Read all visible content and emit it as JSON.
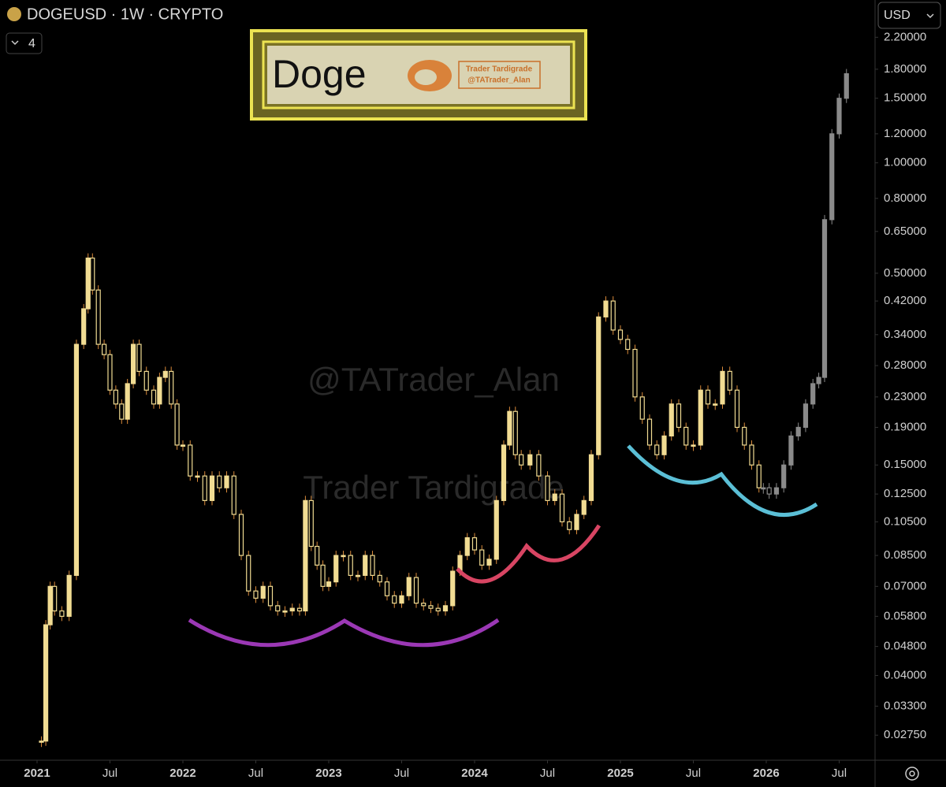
{
  "header": {
    "symbol": "DOGEUSD · 1W · CRYPTO",
    "indicator_count": "4",
    "currency": "USD"
  },
  "logo": {
    "title": "Doge",
    "author": "Trader Tardigrade",
    "handle": "@TATrader_Alan"
  },
  "watermark": {
    "handle": "@TATrader_Alan",
    "author": "Trader Tardigrade"
  },
  "chart_data": {
    "type": "candlestick",
    "log": true,
    "grid": false,
    "xlim": [
      2020.746,
      2026.746
    ],
    "ylim": [
      0.0235,
      2.78
    ],
    "xticks": [
      2021,
      {
        "value": 2021.5,
        "label": "Jul"
      },
      2022,
      {
        "value": 2022.5,
        "label": "Jul"
      },
      2023,
      {
        "value": 2023.5,
        "label": "Jul"
      },
      2024,
      {
        "value": 2024.5,
        "label": "Jul"
      },
      2025,
      {
        "value": 2025.5,
        "label": "Jul"
      },
      2026,
      {
        "value": 2026.5,
        "label": "Jul"
      }
    ],
    "yticks": [
      {
        "value": 2.2,
        "label": "2.20000"
      },
      {
        "value": 1.8,
        "label": "1.80000"
      },
      {
        "value": 1.5,
        "label": "1.50000"
      },
      {
        "value": 1.2,
        "label": "1.20000"
      },
      {
        "value": 1.0,
        "label": "1.00000"
      },
      {
        "value": 0.8,
        "label": "0.80000"
      },
      {
        "value": 0.65,
        "label": "0.65000"
      },
      {
        "value": 0.5,
        "label": "0.50000"
      },
      {
        "value": 0.42,
        "label": "0.42000"
      },
      {
        "value": 0.34,
        "label": "0.34000"
      },
      {
        "value": 0.28,
        "label": "0.28000"
      },
      {
        "value": 0.23,
        "label": "0.23000"
      },
      {
        "value": 0.19,
        "label": "0.19000"
      },
      {
        "value": 0.15,
        "label": "0.15000"
      },
      {
        "value": 0.125,
        "label": "0.12500"
      },
      {
        "value": 0.105,
        "label": "0.10500"
      },
      {
        "value": 0.085,
        "label": "0.08500"
      },
      {
        "value": 0.07,
        "label": "0.07000"
      },
      {
        "value": 0.058,
        "label": "0.05800"
      },
      {
        "value": 0.048,
        "label": "0.04800"
      },
      {
        "value": 0.04,
        "label": "0.04000"
      },
      {
        "value": 0.033,
        "label": "0.03300"
      },
      {
        "value": 0.0275,
        "label": "0.02750"
      }
    ],
    "series": [
      {
        "color": "#f1dc93",
        "x": [
          2021.03,
          2021.06,
          2021.09,
          2021.12,
          2021.17,
          2021.22,
          2021.27,
          2021.32,
          2021.35,
          2021.38,
          2021.42,
          2021.46,
          2021.5,
          2021.54,
          2021.58,
          2021.62,
          2021.66,
          2021.7,
          2021.75,
          2021.8,
          2021.84,
          2021.88,
          2021.92,
          2021.96,
          2022.0,
          2022.05,
          2022.1,
          2022.15,
          2022.2,
          2022.25,
          2022.3,
          2022.35,
          2022.4,
          2022.45,
          2022.5,
          2022.55,
          2022.6,
          2022.65,
          2022.7,
          2022.75,
          2022.8,
          2022.84,
          2022.88,
          2022.92,
          2022.96,
          2023.0,
          2023.05,
          2023.1,
          2023.15,
          2023.2,
          2023.25,
          2023.3,
          2023.35,
          2023.4,
          2023.45,
          2023.5,
          2023.55,
          2023.6,
          2023.65,
          2023.7,
          2023.75,
          2023.8,
          2023.85,
          2023.9,
          2023.95,
          2024.0,
          2024.05,
          2024.1,
          2024.15,
          2024.2,
          2024.24,
          2024.28,
          2024.32,
          2024.38,
          2024.44,
          2024.5,
          2024.55,
          2024.6,
          2024.65,
          2024.7,
          2024.75,
          2024.8,
          2024.85,
          2024.9,
          2024.95,
          2025.0,
          2025.05,
          2025.1,
          2025.15,
          2025.2,
          2025.25,
          2025.3,
          2025.35,
          2025.4,
          2025.45,
          2025.5,
          2025.55,
          2025.6,
          2025.65,
          2025.7,
          2025.75,
          2025.8,
          2025.85,
          2025.9,
          2025.95
        ],
        "values": [
          0.0265,
          0.055,
          0.07,
          0.06,
          0.058,
          0.075,
          0.32,
          0.4,
          0.55,
          0.45,
          0.32,
          0.3,
          0.24,
          0.22,
          0.2,
          0.25,
          0.32,
          0.27,
          0.24,
          0.22,
          0.26,
          0.27,
          0.22,
          0.17,
          0.17,
          0.14,
          0.14,
          0.12,
          0.14,
          0.13,
          0.14,
          0.11,
          0.085,
          0.068,
          0.065,
          0.07,
          0.062,
          0.06,
          0.06,
          0.061,
          0.06,
          0.12,
          0.09,
          0.08,
          0.07,
          0.072,
          0.085,
          0.085,
          0.075,
          0.075,
          0.085,
          0.075,
          0.072,
          0.066,
          0.063,
          0.066,
          0.074,
          0.063,
          0.062,
          0.061,
          0.06,
          0.062,
          0.077,
          0.085,
          0.095,
          0.088,
          0.08,
          0.083,
          0.12,
          0.17,
          0.21,
          0.16,
          0.15,
          0.16,
          0.14,
          0.12,
          0.125,
          0.105,
          0.1,
          0.11,
          0.12,
          0.16,
          0.38,
          0.42,
          0.35,
          0.33,
          0.31,
          0.23,
          0.2,
          0.17,
          0.16,
          0.18,
          0.22,
          0.19,
          0.17,
          0.17,
          0.24,
          0.22,
          0.22,
          0.27,
          0.24,
          0.19,
          0.17,
          0.15,
          0.13
        ]
      },
      {
        "color": "#8a8a8a",
        "x": [
          2025.98,
          2026.02,
          2026.07,
          2026.12,
          2026.17,
          2026.22,
          2026.27,
          2026.32,
          2026.36,
          2026.4,
          2026.45,
          2026.5,
          2026.55
        ],
        "values": [
          0.13,
          0.125,
          0.13,
          0.15,
          0.18,
          0.19,
          0.22,
          0.25,
          0.26,
          0.7,
          1.2,
          1.5,
          1.75
        ]
      }
    ]
  }
}
